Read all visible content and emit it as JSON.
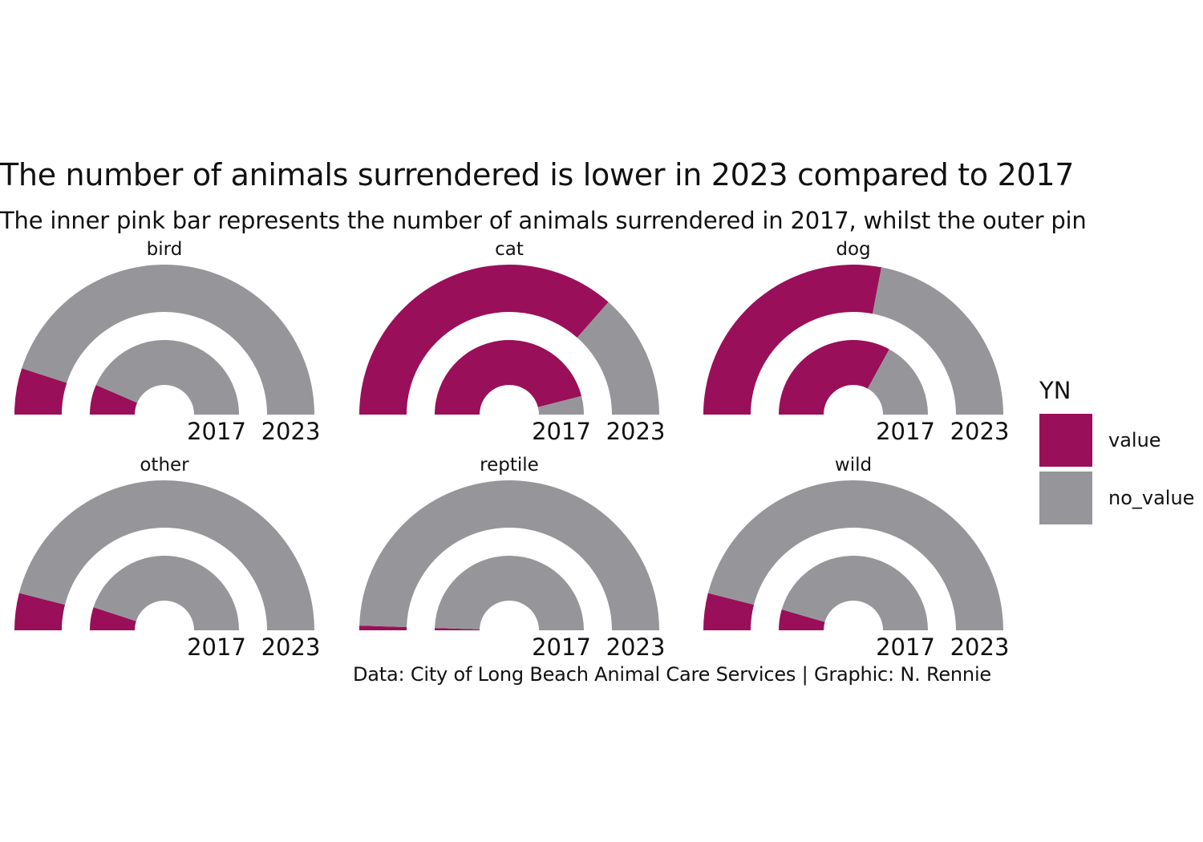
{
  "title": "The number of animals surrendered is lower in 2023 compared to 2017",
  "subtitle": "The inner pink bar represents the number of animals surrendered in 2017, whilst the outer pin",
  "caption": "Data: City of Long Beach Animal Care Services | Graphic: N. Rennie",
  "colors": {
    "value": "#9A0F59",
    "no_value": "#96969A"
  },
  "legend": {
    "title": "YN",
    "items": [
      {
        "label": "value",
        "color": "#9A0F59"
      },
      {
        "label": "no_value",
        "color": "#96969A"
      }
    ]
  },
  "chart_data": {
    "type": "radial-bar",
    "description": "Half-donut stacked radial bars per animal type; share of the half circle that is value (pink) for 2017 (inner ring) and 2023 (outer ring)",
    "ring_labels": [
      "2017",
      "2023"
    ],
    "facets": [
      {
        "name": "bird",
        "value_2017": 0.13,
        "value_2023": 0.1
      },
      {
        "name": "cat",
        "value_2017": 0.92,
        "value_2023": 0.73
      },
      {
        "name": "dog",
        "value_2017": 0.66,
        "value_2023": 0.56
      },
      {
        "name": "other",
        "value_2017": 0.1,
        "value_2023": 0.08
      },
      {
        "name": "reptile",
        "value_2017": 0.01,
        "value_2023": 0.01
      },
      {
        "name": "wild",
        "value_2017": 0.09,
        "value_2023": 0.08
      }
    ]
  }
}
